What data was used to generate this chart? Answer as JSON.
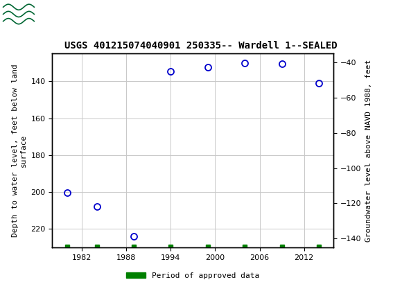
{
  "title": "USGS 401215074040901 250335-- Wardell 1--SEALED",
  "ylabel_left": "Depth to water level, feet below land\nsurface",
  "ylabel_right": "Groundwater level above NAVD 1988, feet",
  "years": [
    1980,
    1984,
    1989,
    1994,
    1999,
    2004,
    2009,
    2014
  ],
  "depths": [
    200.5,
    208.0,
    224.0,
    134.5,
    132.5,
    130.0,
    130.5,
    141.0
  ],
  "green_marker_years": [
    1980,
    1984,
    1989,
    1994,
    1999,
    2004,
    2009,
    2014
  ],
  "ylim_left": [
    230,
    125
  ],
  "ylim_right": [
    -145,
    -35
  ],
  "yticks_left": [
    140,
    160,
    180,
    200,
    220
  ],
  "yticks_right": [
    -40,
    -60,
    -80,
    -100,
    -120,
    -140
  ],
  "xlim": [
    1978,
    2016
  ],
  "xticks": [
    1982,
    1988,
    1994,
    2000,
    2006,
    2012
  ],
  "point_color": "#0000cc",
  "green_color": "#008000",
  "header_color": "#006633",
  "background_color": "#ffffff",
  "grid_color": "#c8c8c8",
  "legend_label": "Period of approved data",
  "green_bottom_y": 229.5,
  "title_fontsize": 10,
  "tick_fontsize": 8,
  "ylabel_fontsize": 8
}
